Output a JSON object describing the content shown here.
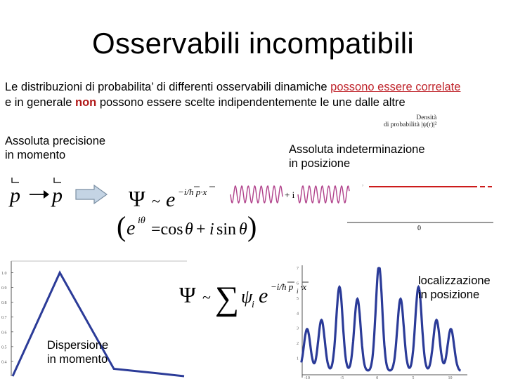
{
  "slide": {
    "title": "Osservabili incompatibili",
    "intro": {
      "part1": "Le distribuzioni di probabilita’ di differenti osservabili dinamiche ",
      "highlight1": "possono essere correlate",
      "part2": "e in generale ",
      "highlight2": "non",
      "part3": " possono essere scelte indipendentemente le une dalle altre"
    },
    "labels": {
      "precision_line1": "Assoluta precisione",
      "precision_line2": "in momento",
      "indeterminacy_line1": "Assoluta indeterminazione",
      "indeterminacy_line2": "in posizione",
      "localization_line1": "localizzazione",
      "localization_line2": "in posizione",
      "dispersion_line1": "Dispersione",
      "dispersion_line2": "in momento"
    },
    "density_caption": {
      "line1": "Densità",
      "line2": "di probabilità",
      "formula": "|ψ(r)|²"
    },
    "plane_wave_separator": "+ i",
    "axis_zero_label": "0",
    "colors": {
      "accent_red": "#c0262d",
      "wave_purple": "#b0408a",
      "dist_blue": "#2b3b98",
      "density_line_red": "#cc1b1b",
      "arrow_fill": "#c4d4e4"
    },
    "charts": {
      "dispersion_yticks": [
        "1.0",
        "0.9",
        "0.8",
        "0.7",
        "0.6",
        "0.5",
        "0.4"
      ],
      "localization_xticks": [
        "-10",
        "-5",
        "0",
        "5",
        "10"
      ],
      "localization_yticks": [
        "7",
        "6",
        "5",
        "4",
        "3",
        "2",
        "1"
      ]
    }
  },
  "chart_data": [
    {
      "type": "line",
      "title": "",
      "xlabel": "",
      "ylabel": "",
      "ylim": [
        0.3,
        1.05
      ],
      "x": [
        0,
        1,
        2,
        3,
        4
      ],
      "y": [
        0.3,
        1.0,
        0.35,
        0.32,
        0.3
      ]
    },
    {
      "type": "line",
      "title": "",
      "xlabel": "",
      "ylabel": "",
      "xlim": [
        -10,
        12
      ],
      "ylim": [
        0,
        7
      ],
      "peaks_x": [
        -10,
        -8,
        -5.5,
        -3,
        0,
        3,
        5.5,
        8,
        10
      ],
      "peaks_y": [
        2.8,
        3.4,
        5.6,
        4.8,
        7.0,
        4.8,
        5.6,
        3.4,
        2.8
      ]
    }
  ]
}
